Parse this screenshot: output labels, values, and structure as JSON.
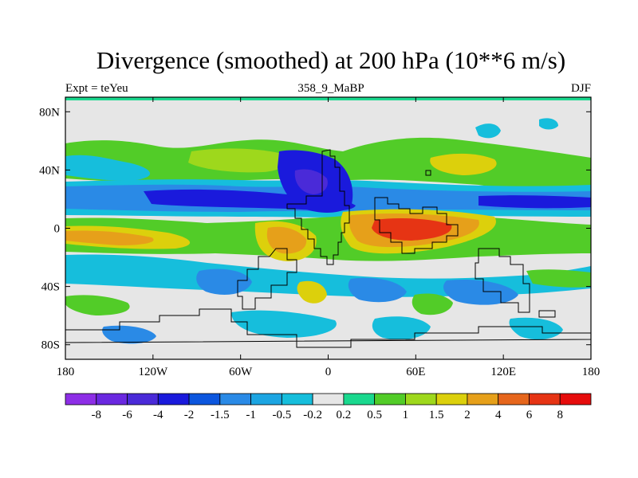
{
  "title": "Divergence (smoothed) at 200 hPa (10**6 m/s)",
  "subtitle_left": "Expt = teYeu",
  "subtitle_center": "358_9_MaBP",
  "subtitle_right": "DJF",
  "chart_data": {
    "type": "heatmap",
    "variable": "Divergence (smoothed) at 200 hPa",
    "units": "10**6 m/s",
    "experiment": "teYeu",
    "period": "358_9_MaBP",
    "season": "DJF",
    "x_range": [
      -180,
      180
    ],
    "y_range": [
      -90,
      90
    ],
    "x_ticks": [
      {
        "value": -180,
        "label": "180"
      },
      {
        "value": -120,
        "label": "120W"
      },
      {
        "value": -60,
        "label": "60W"
      },
      {
        "value": 0,
        "label": "0"
      },
      {
        "value": 60,
        "label": "60E"
      },
      {
        "value": 120,
        "label": "120E"
      },
      {
        "value": 180,
        "label": "180"
      }
    ],
    "y_ticks": [
      {
        "value": 80,
        "label": "80N"
      },
      {
        "value": 40,
        "label": "40N"
      },
      {
        "value": 0,
        "label": "0"
      },
      {
        "value": -40,
        "label": "40S"
      },
      {
        "value": -80,
        "label": "80S"
      }
    ],
    "colorbar": {
      "labels": [
        "-8",
        "-6",
        "-4",
        "-2",
        "-1.5",
        "-1",
        "-0.5",
        "-0.2",
        "0.2",
        "0.5",
        "1",
        "1.5",
        "2",
        "4",
        "6",
        "8"
      ],
      "colors": [
        "#8d2ee6",
        "#6a28e0",
        "#4a2ad8",
        "#1a1adc",
        "#0c56de",
        "#2a8ae6",
        "#1ca5e2",
        "#16bedc",
        "#e6e6e6",
        "#1ad88e",
        "#52cc28",
        "#9ed81c",
        "#dcd00c",
        "#e6a01a",
        "#e6661c",
        "#e63414",
        "#e60c0c"
      ]
    },
    "features": [
      {
        "name": "equatorial divergence band (Indian Ocean / Africa)",
        "lon": [
          20,
          90
        ],
        "lat": [
          -15,
          5
        ],
        "value": 6
      },
      {
        "name": "equatorial divergence band (Pacific)",
        "lon": [
          -180,
          -130
        ],
        "lat": [
          -15,
          -5
        ],
        "value": 4
      },
      {
        "name": "northern subtropical convergence band",
        "lon": [
          -180,
          180
        ],
        "lat": [
          10,
          30
        ],
        "value": -2
      },
      {
        "name": "strong convergence core",
        "lon": [
          -30,
          20
        ],
        "lat": [
          5,
          25
        ],
        "value": -4
      },
      {
        "name": "northern midlatitude divergence",
        "lon": [
          -180,
          180
        ],
        "lat": [
          30,
          55
        ],
        "value": 1
      },
      {
        "name": "southern midlatitude convergence cells",
        "lon": [
          -180,
          180
        ],
        "lat": [
          -65,
          -25
        ],
        "value": -1
      }
    ]
  }
}
